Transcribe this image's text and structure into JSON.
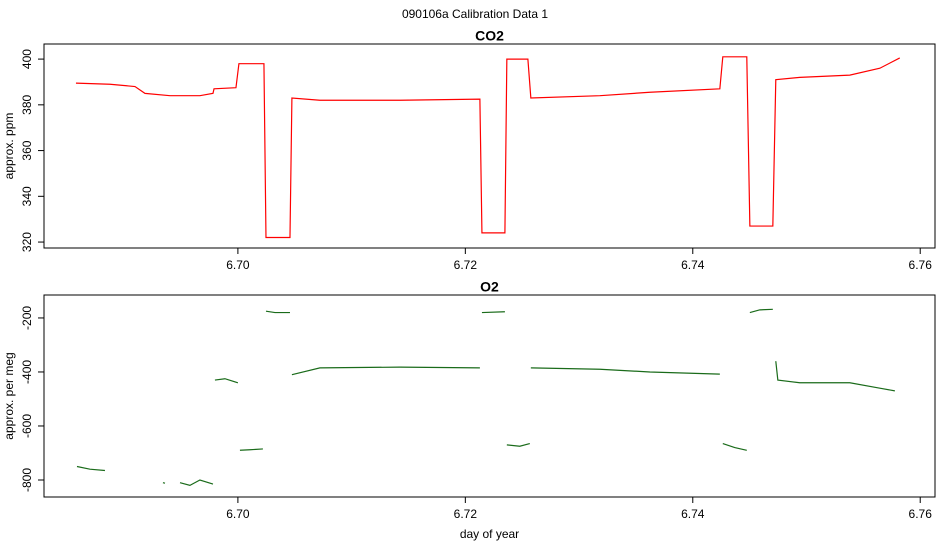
{
  "title": "090106a   Calibration Data 1",
  "chart_data": [
    {
      "type": "line",
      "title": "CO2",
      "ylabel": "approx. ppm",
      "x": [
        6.68576,
        6.68875,
        6.69095,
        6.69183,
        6.69403,
        6.69666,
        6.69781,
        6.6979,
        6.69983,
        6.70009,
        6.70229,
        6.70247,
        6.70458,
        6.70475,
        6.70721,
        6.71425,
        6.72128,
        6.72146,
        6.72348,
        6.72365,
        6.7255,
        6.72576,
        6.73183,
        6.73623,
        6.74238,
        6.74264,
        6.74475,
        6.74502,
        6.74704,
        6.7473,
        6.74941,
        6.75381,
        6.75645,
        6.7582
      ],
      "series": [
        {
          "color": "#ff0000",
          "values": [
            389.5,
            389,
            388,
            385,
            384,
            384,
            385,
            387,
            387.5,
            398,
            398,
            322,
            322,
            383,
            382,
            382,
            382.5,
            324,
            324,
            400,
            400,
            383,
            384,
            385.5,
            387,
            401,
            401,
            327,
            327,
            391,
            392,
            393,
            396,
            400.5
          ]
        }
      ],
      "xlim": [
        6.68295,
        6.7613
      ],
      "ylim": [
        317.4,
        406.6
      ],
      "xticks": [
        {
          "value": 6.7,
          "label": "6.70"
        },
        {
          "value": 6.72,
          "label": "6.72"
        },
        {
          "value": 6.74,
          "label": "6.74"
        },
        {
          "value": 6.76,
          "label": "6.76"
        }
      ],
      "yticks": [
        320,
        340,
        360,
        380,
        400
      ]
    },
    {
      "type": "line",
      "title": "O2",
      "ylabel": "approx. per meg",
      "xlabel": "day of year",
      "x": [
        6.68585,
        6.68699,
        6.68831,
        null,
        6.69341,
        6.69359,
        null,
        6.69491,
        6.69578,
        6.69666,
        6.69781,
        null,
        6.69798,
        6.69886,
        6.7,
        null,
        6.70018,
        6.70106,
        6.7022,
        null,
        6.70247,
        6.70326,
        6.70458,
        null,
        6.70475,
        6.70721,
        6.71425,
        6.72128,
        null,
        6.72146,
        6.72348,
        null,
        6.72365,
        6.72479,
        6.72567,
        null,
        6.72576,
        6.73183,
        6.73623,
        6.74238,
        null,
        6.74264,
        6.74369,
        6.74475,
        null,
        6.74502,
        6.7459,
        6.74704,
        null,
        6.7473,
        6.74748,
        6.74941,
        6.75381,
        6.75645,
        6.75777
      ],
      "series": [
        {
          "color": "#1a6b1a",
          "values": [
            -750,
            -760,
            -765,
            null,
            -810,
            -812,
            null,
            -810,
            -820,
            -800,
            -815,
            null,
            -430,
            -425,
            -440,
            null,
            -690,
            -688,
            -685,
            null,
            -175,
            -180,
            -180,
            null,
            -410,
            -385,
            -382,
            -385,
            null,
            -180,
            -177,
            null,
            -670,
            -675,
            -665,
            null,
            -385,
            -390,
            -400,
            -408,
            null,
            -665,
            -680,
            -690,
            null,
            -180,
            -170,
            -168,
            null,
            -360,
            -430,
            -440,
            -440,
            -460,
            -470
          ]
        }
      ],
      "xlim": [
        6.68295,
        6.7613
      ],
      "ylim": [
        -863,
        -115
      ],
      "xticks": [
        {
          "value": 6.7,
          "label": "6.70"
        },
        {
          "value": 6.72,
          "label": "6.72"
        },
        {
          "value": 6.74,
          "label": "6.74"
        },
        {
          "value": 6.76,
          "label": "6.76"
        }
      ],
      "yticks": [
        -800,
        -600,
        -400,
        -200
      ]
    }
  ]
}
